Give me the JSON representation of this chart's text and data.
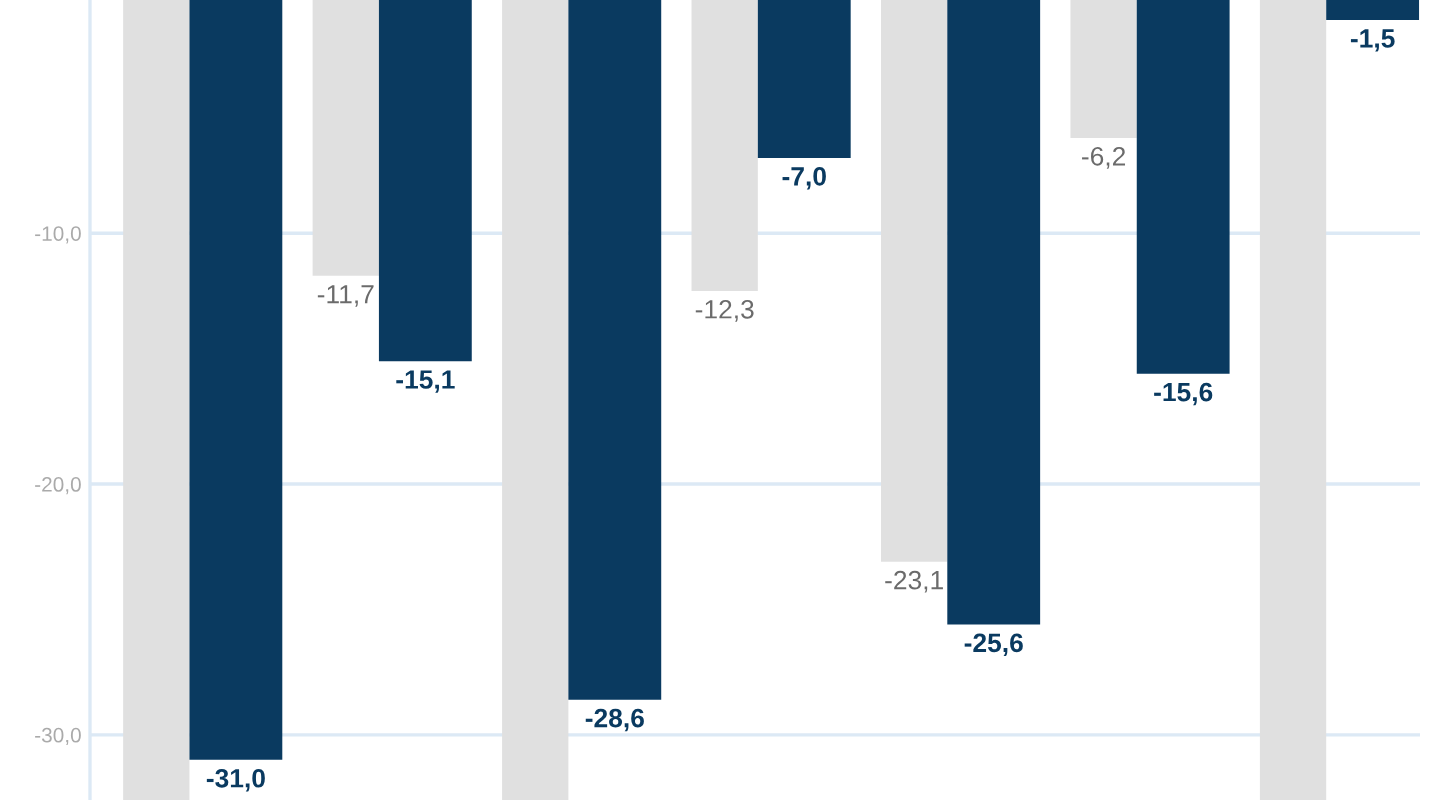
{
  "chart_data": {
    "type": "bar",
    "categories": [
      null,
      null,
      null,
      null,
      null,
      null,
      null
    ],
    "series": [
      {
        "color": "#e0e0e0",
        "values": [
          -32.6,
          -11.7,
          -32.6,
          -12.3,
          -23.1,
          -6.2,
          -32.6
        ],
        "value_labels": [
          null,
          "-11,7",
          null,
          "-12,3",
          "-23,1",
          "-6,2",
          null
        ]
      },
      {
        "color": "#0a3a60",
        "values": [
          -31.0,
          -15.1,
          -28.6,
          -7.0,
          -25.6,
          -15.6,
          -1.5
        ],
        "value_labels": [
          "-31,0",
          "-15,1",
          "-28,6",
          "-7,0",
          "-25,6",
          "-15,6",
          "-1,5"
        ]
      }
    ],
    "ylim": [
      -32.6,
      -0.7
    ],
    "yticks": [
      {
        "value": -10,
        "label": "-10,0"
      },
      {
        "value": -20,
        "label": "-20,0"
      },
      {
        "value": -30,
        "label": "-30,0"
      }
    ],
    "grid": "y",
    "tick_labels": "y"
  }
}
